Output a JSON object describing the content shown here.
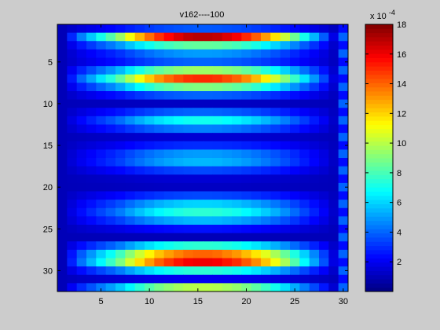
{
  "window": {
    "background": "#cccccc"
  },
  "chart_data": {
    "type": "heatmap",
    "title": "v162----100",
    "xlabel": "",
    "ylabel": "",
    "x_range": [
      0.5,
      30.5
    ],
    "y_range": [
      0.5,
      32.5
    ],
    "y_reversed": true,
    "x_ticks": [
      "5",
      "10",
      "15",
      "20",
      "25",
      "30"
    ],
    "y_ticks": [
      "5",
      "10",
      "15",
      "20",
      "25",
      "30"
    ],
    "cols": 30,
    "rows": 32,
    "colormap": "jet",
    "grid": false,
    "colorbar": {
      "placement": "right",
      "range": [
        0,
        18
      ],
      "ticks": [
        "2",
        "4",
        "6",
        "8",
        "10",
        "12",
        "14",
        "16",
        "18"
      ],
      "exponent_label": "x 10",
      "exponent_power": "-4"
    },
    "row_profile": [
      3.8,
      17.0,
      8.5,
      5.0,
      4.0,
      9.5,
      15.0,
      9.0,
      4.0,
      1.2,
      4.0,
      7.0,
      4.5,
      1.5,
      3.0,
      5.0,
      5.5,
      3.5,
      1.5,
      1.2,
      3.5,
      6.0,
      7.5,
      5.5,
      2.5,
      1.0,
      7.5,
      14.0,
      16.0,
      7.5,
      2.0,
      10.0
    ],
    "col_profile": [
      0.0,
      0.12,
      0.22,
      0.3,
      0.38,
      0.45,
      0.53,
      0.63,
      0.72,
      0.8,
      0.87,
      0.92,
      0.96,
      0.99,
      1.0,
      1.0,
      0.99,
      0.96,
      0.93,
      0.88,
      0.82,
      0.75,
      0.67,
      0.58,
      0.48,
      0.38,
      0.28,
      0.18,
      0.05,
      0.3
    ],
    "edge_col_value": 4.0
  }
}
